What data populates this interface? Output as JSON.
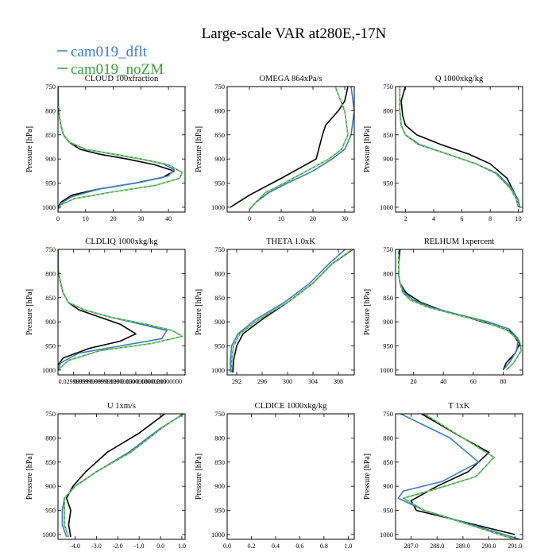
{
  "figure": {
    "title": "Large-scale VAR at280E,-17N",
    "legend": [
      {
        "name": "cam019_dflt",
        "color": "#3a7dc0"
      },
      {
        "name": "cam019_noZM",
        "color": "#3aa13a"
      }
    ],
    "ref_color": "#000000"
  },
  "chart_data": [
    {
      "type": "line",
      "title": "CLOUD  100xfraction",
      "ylabel": "Pressure [hPa]",
      "ylim": [
        1010,
        750
      ],
      "yticks": [
        750,
        800,
        850,
        900,
        950,
        1000
      ],
      "xlim": [
        0,
        46
      ],
      "xticks": [
        0,
        10,
        20,
        30,
        40
      ],
      "xtick_labels": [
        "0",
        "10",
        "20",
        "30",
        "40"
      ],
      "series": [
        {
          "name": "ref",
          "color": "#000000",
          "x": [
            0,
            0,
            0.5,
            1,
            2,
            4,
            8,
            15,
            25,
            35,
            42,
            38,
            28,
            15,
            5,
            1,
            0
          ],
          "y": [
            750,
            780,
            810,
            830,
            850,
            865,
            880,
            890,
            900,
            912,
            925,
            938,
            950,
            962,
            975,
            990,
            1000
          ]
        },
        {
          "name": "cam019_dflt",
          "color": "#3a7dc0",
          "x": [
            0,
            0,
            0.5,
            1,
            2,
            4,
            10,
            20,
            30,
            38,
            42,
            40,
            30,
            15,
            5,
            1,
            0
          ],
          "y": [
            750,
            780,
            810,
            830,
            850,
            865,
            880,
            890,
            900,
            910,
            922,
            935,
            948,
            962,
            978,
            992,
            1005
          ]
        },
        {
          "name": "cam019_noZM",
          "color": "#3aa13a",
          "x": [
            0,
            0,
            0.5,
            1,
            2,
            4,
            10,
            20,
            30,
            40,
            45,
            44,
            35,
            20,
            6,
            1,
            0
          ],
          "y": [
            750,
            780,
            810,
            830,
            850,
            865,
            880,
            890,
            900,
            912,
            928,
            940,
            955,
            968,
            982,
            995,
            1005
          ]
        }
      ]
    },
    {
      "type": "line",
      "title": "OMEGA  864xPa/s",
      "ylabel": "Pressure [hPa]",
      "ylim": [
        1010,
        750
      ],
      "yticks": [
        750,
        800,
        850,
        900,
        950,
        1000
      ],
      "xlim": [
        -7,
        33
      ],
      "xticks": [
        0,
        10,
        20,
        30
      ],
      "xtick_labels": [
        "0",
        "10",
        "20",
        "30"
      ],
      "series": [
        {
          "name": "ref",
          "color": "#000000",
          "x": [
            31,
            30,
            28,
            24,
            23,
            22,
            21,
            10,
            0,
            -6
          ],
          "y": [
            750,
            780,
            800,
            830,
            850,
            875,
            900,
            940,
            975,
            1000
          ]
        },
        {
          "name": "cam019_dflt",
          "color": "#3a7dc0",
          "x": [
            32,
            33,
            32,
            30,
            26,
            20,
            12,
            6,
            2,
            0
          ],
          "y": [
            750,
            800,
            850,
            880,
            900,
            925,
            950,
            970,
            990,
            1005
          ]
        },
        {
          "name": "cam019_noZM",
          "color": "#3aa13a",
          "x": [
            27,
            30,
            31,
            29,
            25,
            18,
            11,
            5,
            2,
            0
          ],
          "y": [
            750,
            800,
            850,
            880,
            900,
            925,
            950,
            970,
            990,
            1005
          ]
        }
      ]
    },
    {
      "type": "line",
      "title": "Q  1000xkg/kg",
      "ylabel": "Pressure [hPa]",
      "ylim": [
        1010,
        750
      ],
      "yticks": [
        750,
        800,
        850,
        900,
        950,
        1000
      ],
      "xlim": [
        1.3,
        10.3
      ],
      "xticks": [
        2,
        4,
        6,
        8,
        10
      ],
      "xtick_labels": [
        "2",
        "4",
        "6",
        "8",
        "10"
      ],
      "series": [
        {
          "name": "ref",
          "color": "#000000",
          "x": [
            2,
            1.7,
            1.8,
            2,
            2.8,
            4.5,
            6.5,
            8,
            9.2,
            9.8,
            10
          ],
          "y": [
            750,
            780,
            810,
            830,
            850,
            870,
            890,
            910,
            940,
            975,
            1000
          ]
        },
        {
          "name": "cam019_dflt",
          "color": "#3a7dc0",
          "x": [
            1.6,
            1.6,
            1.7,
            2,
            3,
            5,
            7,
            8.5,
            9.5,
            10,
            10.1
          ],
          "y": [
            750,
            800,
            830,
            850,
            870,
            890,
            910,
            930,
            960,
            985,
            1000
          ]
        },
        {
          "name": "cam019_noZM",
          "color": "#3aa13a",
          "x": [
            1.6,
            1.6,
            1.7,
            2,
            2.9,
            5,
            7,
            8.4,
            9.4,
            9.9,
            10
          ],
          "y": [
            750,
            800,
            830,
            850,
            870,
            890,
            910,
            930,
            960,
            985,
            1000
          ]
        }
      ]
    },
    {
      "type": "line",
      "title": "CLDLIQ  1000xkg/kg",
      "ylabel": "Pressure [hPa]",
      "ylim": [
        1010,
        750
      ],
      "yticks": [
        750,
        800,
        850,
        900,
        950,
        1000
      ],
      "xlim": [
        0,
        0.245
      ],
      "xticks": [
        0.03,
        0.06,
        0.09,
        0.12,
        0.15,
        0.18,
        0.21
      ],
      "xtick_labels": [
        "0.02999999",
        "0.05999999",
        "0.08999999",
        "0.12000000",
        "0.15000000",
        "0.18000000",
        "0.21000000"
      ],
      "series": [
        {
          "name": "ref",
          "color": "#000000",
          "x": [
            0,
            0,
            0.005,
            0.01,
            0.02,
            0.04,
            0.08,
            0.12,
            0.15,
            0.12,
            0.06,
            0.01,
            0
          ],
          "y": [
            750,
            790,
            820,
            840,
            860,
            875,
            890,
            905,
            925,
            940,
            955,
            975,
            990
          ]
        },
        {
          "name": "cam019_dflt",
          "color": "#3a7dc0",
          "x": [
            0,
            0,
            0.005,
            0.01,
            0.02,
            0.05,
            0.1,
            0.16,
            0.21,
            0.2,
            0.12,
            0.04,
            0.005,
            0
          ],
          "y": [
            750,
            790,
            820,
            840,
            860,
            875,
            890,
            905,
            918,
            935,
            950,
            965,
            985,
            1000
          ]
        },
        {
          "name": "cam019_noZM",
          "color": "#3aa13a",
          "x": [
            0,
            0,
            0.005,
            0.01,
            0.02,
            0.05,
            0.1,
            0.17,
            0.22,
            0.24,
            0.18,
            0.08,
            0.02,
            0
          ],
          "y": [
            750,
            790,
            820,
            840,
            860,
            875,
            890,
            905,
            918,
            930,
            945,
            960,
            980,
            1000
          ]
        }
      ]
    },
    {
      "type": "line",
      "title": "THETA  1.0xK",
      "ylabel": "Pressure [hPa]",
      "ylim": [
        1010,
        750
      ],
      "yticks": [
        750,
        800,
        850,
        900,
        950,
        1000
      ],
      "xlim": [
        290.5,
        310.5
      ],
      "xticks": [
        292,
        296,
        300,
        304,
        308
      ],
      "xtick_labels": [
        "292",
        "296",
        "300",
        "304",
        "308"
      ],
      "series": [
        {
          "name": "ref",
          "color": "#000000",
          "x": [
            310.3,
            307,
            304,
            300,
            296,
            293,
            292,
            291.5,
            291.4
          ],
          "y": [
            750,
            780,
            820,
            860,
            895,
            925,
            950,
            980,
            1005
          ]
        },
        {
          "name": "cam019_dflt",
          "color": "#3a7dc0",
          "x": [
            309.5,
            306.5,
            303.5,
            299.5,
            295,
            292.2,
            291.2,
            291,
            291
          ],
          "y": [
            745,
            780,
            820,
            860,
            895,
            925,
            950,
            980,
            1005
          ]
        },
        {
          "name": "cam019_noZM",
          "color": "#3aa13a",
          "x": [
            310.2,
            307,
            304,
            300,
            295.5,
            292.5,
            291.5,
            291.2,
            291.2
          ],
          "y": [
            750,
            780,
            820,
            860,
            895,
            925,
            950,
            980,
            1005
          ]
        }
      ]
    },
    {
      "type": "line",
      "title": "RELHUM  1xpercent",
      "ylabel": "Pressure [hPa]",
      "ylim": [
        1010,
        750
      ],
      "yticks": [
        750,
        800,
        850,
        900,
        950,
        1000
      ],
      "xlim": [
        8,
        93
      ],
      "xticks": [
        20,
        40,
        60,
        80
      ],
      "xtick_labels": [
        "20",
        "40",
        "60",
        "80"
      ],
      "series": [
        {
          "name": "ref",
          "color": "#000000",
          "x": [
            11,
            10,
            10,
            11,
            15,
            25,
            38,
            55,
            72,
            85,
            91,
            88,
            82,
            80
          ],
          "y": [
            750,
            780,
            800,
            820,
            840,
            860,
            875,
            890,
            905,
            920,
            945,
            965,
            985,
            1000
          ]
        },
        {
          "name": "cam019_dflt",
          "color": "#3a7dc0",
          "x": [
            10,
            10,
            11,
            14,
            20,
            32,
            50,
            70,
            84,
            90,
            89,
            84,
            80
          ],
          "y": [
            750,
            800,
            820,
            840,
            855,
            870,
            885,
            900,
            915,
            935,
            960,
            985,
            1000
          ]
        },
        {
          "name": "cam019_noZM",
          "color": "#3aa13a",
          "x": [
            10,
            10,
            11,
            13,
            18,
            30,
            48,
            68,
            83,
            91,
            92,
            87,
            82
          ],
          "y": [
            750,
            800,
            820,
            840,
            855,
            870,
            885,
            900,
            918,
            940,
            960,
            985,
            1000
          ]
        }
      ]
    },
    {
      "type": "line",
      "title": "U  1xm/s",
      "ylabel": "Pressure [hPa]",
      "ylim": [
        1010,
        750
      ],
      "yticks": [
        750,
        800,
        850,
        900,
        950,
        1000
      ],
      "xlim": [
        -4.8,
        1.15
      ],
      "xticks": [
        -4,
        -3,
        -2,
        -1,
        0,
        1
      ],
      "xtick_labels": [
        "-4.0",
        "-3.0",
        "-2.0",
        "-1.0",
        "0.0",
        "1.0"
      ],
      "series": [
        {
          "name": "ref",
          "color": "#000000",
          "x": [
            0.2,
            -1,
            -2.5,
            -3.5,
            -4.1,
            -4.4,
            -4.2,
            -4.3,
            -4.2
          ],
          "y": [
            750,
            790,
            830,
            870,
            900,
            925,
            950,
            980,
            1005
          ]
        },
        {
          "name": "cam019_dflt",
          "color": "#3a7dc0",
          "x": [
            1.1,
            0,
            -1.5,
            -3,
            -4,
            -4.5,
            -4.6,
            -4.6,
            -4.4
          ],
          "y": [
            750,
            780,
            830,
            870,
            900,
            925,
            950,
            980,
            1005
          ]
        },
        {
          "name": "cam019_noZM",
          "color": "#3aa13a",
          "x": [
            1.05,
            0.05,
            -1.4,
            -3,
            -4,
            -4.5,
            -4.5,
            -4.5,
            -4.3
          ],
          "y": [
            750,
            780,
            830,
            870,
            900,
            925,
            950,
            980,
            1005
          ]
        }
      ]
    },
    {
      "type": "line",
      "title": "CLDICE  1000xkg/kg",
      "ylabel": "Pressure [hPa]",
      "ylim": [
        1010,
        750
      ],
      "yticks": [
        750,
        800,
        850,
        900,
        950,
        1000
      ],
      "xlim": [
        0,
        1.05
      ],
      "xticks": [
        0,
        0.2,
        0.4,
        0.6,
        0.8,
        1.0
      ],
      "xtick_labels": [
        "0.0",
        "0.2",
        "0.4",
        "0.6",
        "0.8",
        "1.0"
      ],
      "series": []
    },
    {
      "type": "line",
      "title": "T  1xK",
      "ylabel": "Pressure [hPa]",
      "ylim": [
        1010,
        750
      ],
      "yticks": [
        750,
        800,
        850,
        900,
        950,
        1000
      ],
      "xlim": [
        286.4,
        291.3
      ],
      "xticks": [
        287,
        288,
        289,
        290,
        291
      ],
      "xtick_labels": [
        "287.0",
        "288.0",
        "289.0",
        "290.0",
        "291.0"
      ],
      "series": [
        {
          "name": "ref",
          "color": "#000000",
          "x": [
            287.4,
            289,
            290,
            289.2,
            288,
            287,
            287.2,
            291
          ],
          "y": [
            750,
            800,
            830,
            870,
            900,
            930,
            950,
            1000
          ]
        },
        {
          "name": "cam019_dflt",
          "color": "#3a7dc0",
          "x": [
            286.6,
            288.5,
            289.6,
            288.2,
            286.7,
            286.5,
            287.5,
            291.2
          ],
          "y": [
            750,
            800,
            850,
            890,
            910,
            925,
            950,
            1010
          ]
        },
        {
          "name": "cam019_noZM",
          "color": "#3aa13a",
          "x": [
            287.5,
            289,
            290.2,
            289.5,
            288,
            286.7,
            287.5,
            291
          ],
          "y": [
            750,
            800,
            840,
            880,
            905,
            925,
            950,
            1010
          ]
        }
      ]
    }
  ]
}
